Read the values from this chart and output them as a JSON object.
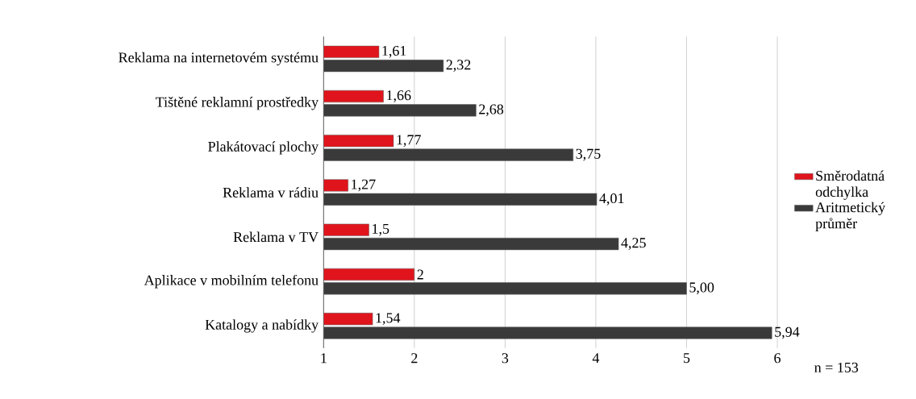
{
  "chart_data": {
    "type": "bar",
    "orientation": "horizontal",
    "categories": [
      "Reklama na internetovém systému",
      "Tištěné reklamní prostředky",
      "Plakátovací plochy",
      "Reklama v rádiu",
      "Reklama v TV",
      "Aplikace v mobilním telefonu",
      "Katalogy a nabídky"
    ],
    "series": [
      {
        "name": "Směrodatná odchylka",
        "color": "#e0141c",
        "values": [
          1.61,
          1.66,
          1.77,
          1.27,
          1.5,
          2,
          1.54
        ],
        "value_labels": [
          "1,61",
          "1,66",
          "1,77",
          "1,27",
          "1,5",
          "2",
          "1,54"
        ]
      },
      {
        "name": "Aritmetický průměr",
        "color": "#3a3a3a",
        "values": [
          2.32,
          2.68,
          3.75,
          4.01,
          4.25,
          5.0,
          5.94
        ],
        "value_labels": [
          "2,32",
          "2,68",
          "3,75",
          "4,01",
          "4,25",
          "5,00",
          "5,94"
        ]
      }
    ],
    "xlim": [
      1,
      6
    ],
    "xticks": [
      1,
      2,
      3,
      4,
      5,
      6
    ],
    "grid": "x",
    "legend": "right",
    "annotations": [
      "n = 153"
    ]
  }
}
